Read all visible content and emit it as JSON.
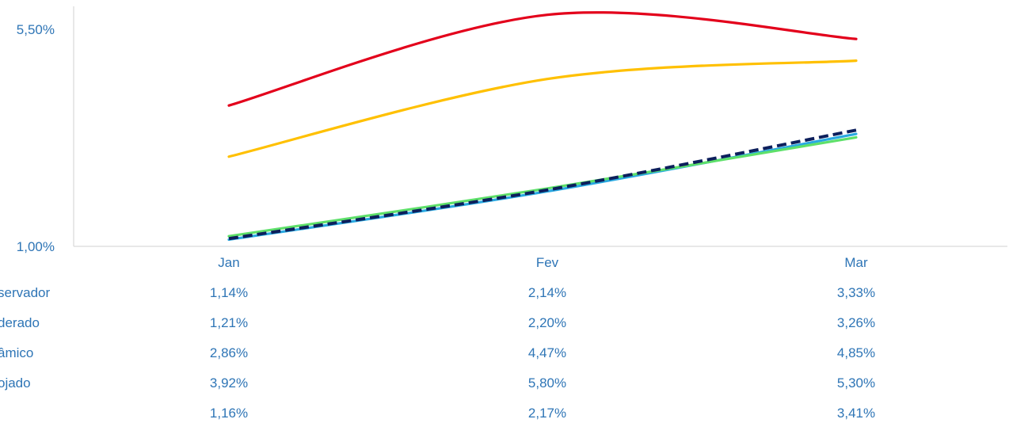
{
  "chart_data": {
    "type": "line",
    "categories": [
      "Jan",
      "Fev",
      "Mar"
    ],
    "y_ticks": [
      "1,00%",
      "5,50%"
    ],
    "ylim": [
      1.0,
      5.95
    ],
    "grid": false,
    "legend": "none",
    "series": [
      {
        "name": "servador",
        "values": [
          1.14,
          2.14,
          3.33
        ],
        "labels": [
          "1,14%",
          "2,14%",
          "3,33%"
        ],
        "color": "#29a9e1",
        "dash": false
      },
      {
        "name": "derado",
        "values": [
          1.21,
          2.2,
          3.26
        ],
        "labels": [
          "1,21%",
          "2,20%",
          "3,26%"
        ],
        "color": "#5ee06a",
        "dash": false
      },
      {
        "name": "âmico",
        "values": [
          2.86,
          4.47,
          4.85
        ],
        "labels": [
          "2,86%",
          "4,47%",
          "4,85%"
        ],
        "color": "#ffc000",
        "dash": false
      },
      {
        "name": "ojado",
        "values": [
          3.92,
          5.8,
          5.3
        ],
        "labels": [
          "3,92%",
          "5,80%",
          "5,30%"
        ],
        "color": "#e3001b",
        "dash": false
      },
      {
        "name": "",
        "values": [
          1.16,
          2.17,
          3.41
        ],
        "labels": [
          "1,16%",
          "2,17%",
          "3,41%"
        ],
        "color": "#0d1f5c",
        "dash": true
      }
    ]
  }
}
